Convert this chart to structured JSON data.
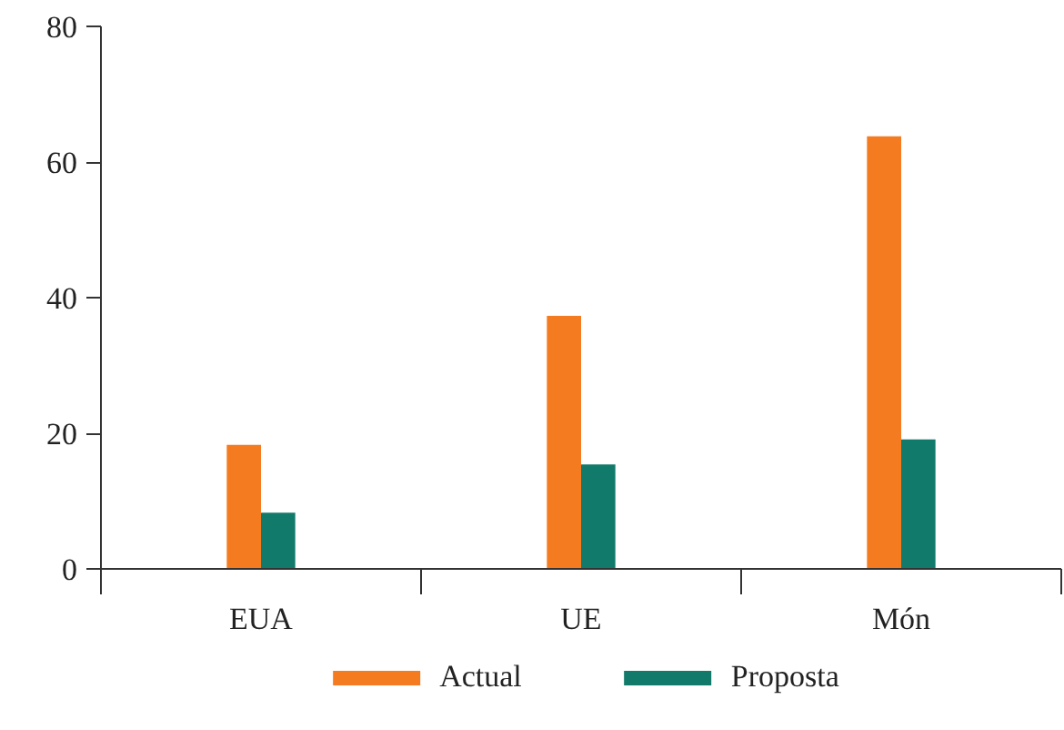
{
  "chart_data": {
    "type": "bar",
    "categories": [
      "EUA",
      "UE",
      "Món"
    ],
    "series": [
      {
        "name": "Actual",
        "color": "#f47b20",
        "values": [
          18.3,
          37.3,
          63.8
        ]
      },
      {
        "name": "Proposta",
        "color": "#117a6a",
        "values": [
          8.3,
          15.4,
          19.1
        ]
      }
    ],
    "ylim": [
      0,
      80
    ],
    "yticks": [
      0,
      20,
      40,
      60,
      80
    ],
    "grid": false,
    "legend": "bottom"
  }
}
